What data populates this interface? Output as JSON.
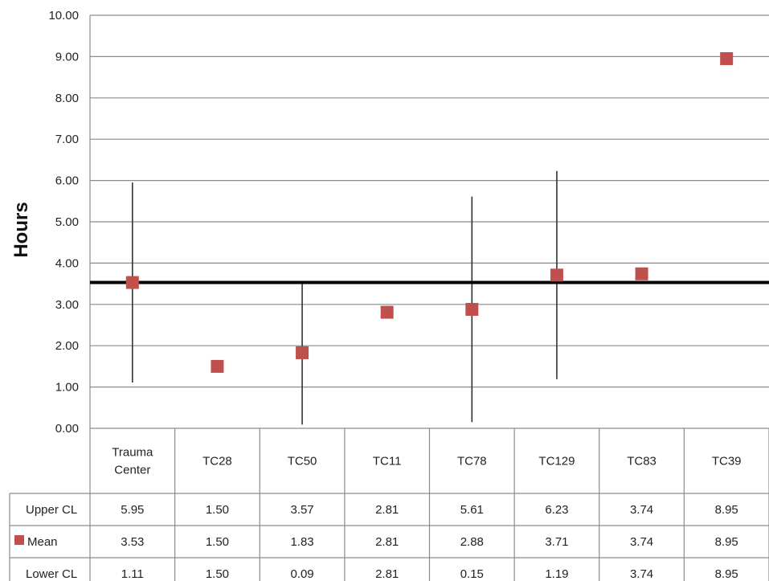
{
  "chart_data": {
    "type": "scatter",
    "ylabel": "Hours",
    "ylim": [
      0,
      10
    ],
    "y_ticks": [
      "0.00",
      "1.00",
      "2.00",
      "3.00",
      "4.00",
      "5.00",
      "6.00",
      "7.00",
      "8.00",
      "9.00",
      "10.00"
    ],
    "grid": true,
    "reference_line": 3.53,
    "categories": [
      "Trauma\nCenter",
      "TC28",
      "TC50",
      "TC11",
      "TC78",
      "TC129",
      "TC83",
      "TC39"
    ],
    "series": [
      {
        "name": "Upper CL",
        "values": [
          5.95,
          1.5,
          3.57,
          2.81,
          5.61,
          6.23,
          3.74,
          8.95
        ],
        "labels": [
          "5.95",
          "1.50",
          "3.57",
          "2.81",
          "5.61",
          "6.23",
          "3.74",
          "8.95"
        ]
      },
      {
        "name": "Mean",
        "values": [
          3.53,
          1.5,
          1.83,
          2.81,
          2.88,
          3.71,
          3.74,
          8.95
        ],
        "labels": [
          "3.53",
          "1.50",
          "1.83",
          "2.81",
          "2.88",
          "3.71",
          "3.74",
          "8.95"
        ],
        "color": "#c0504d"
      },
      {
        "name": "Lower CL",
        "values": [
          1.11,
          1.5,
          0.09,
          2.81,
          0.15,
          1.19,
          3.74,
          8.95
        ],
        "labels": [
          "1.11",
          "1.50",
          "0.09",
          "2.81",
          "0.15",
          "1.19",
          "3.74",
          "8.95"
        ]
      }
    ],
    "legend": "data-table"
  }
}
